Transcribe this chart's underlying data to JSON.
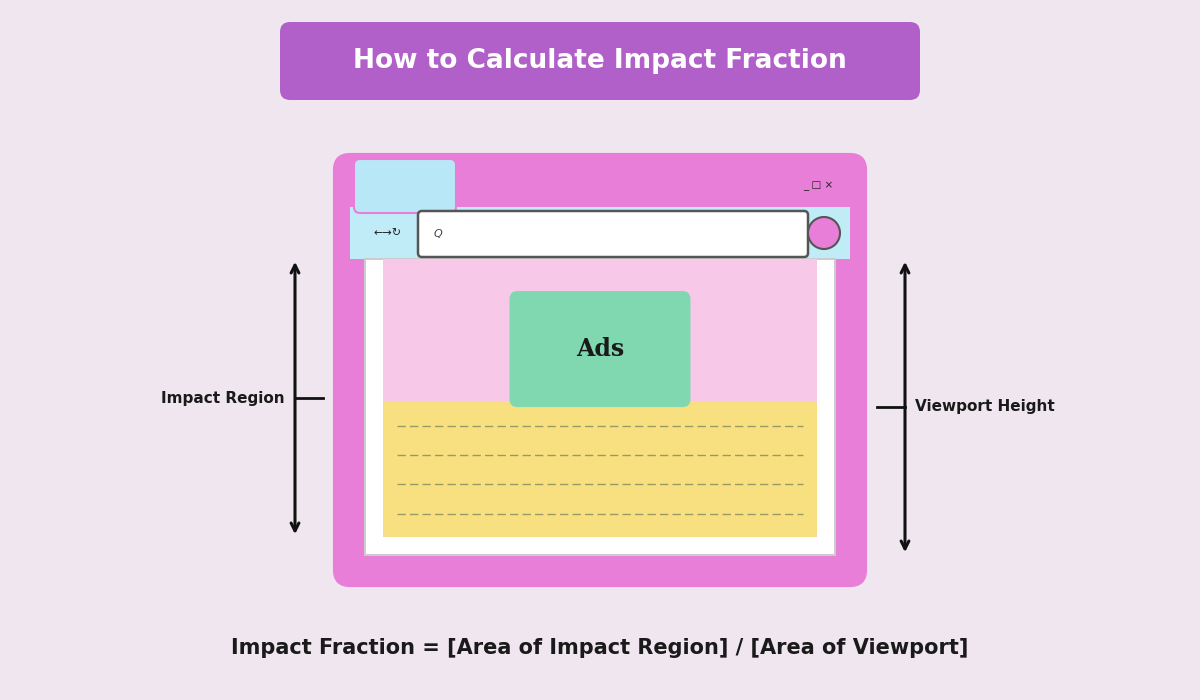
{
  "bg_color": "#f0e6f0",
  "title_text": "How to Calculate Impact Fraction",
  "title_bg": "#b060c8",
  "title_fg": "#ffffff",
  "formula_text": "Impact Fraction = [Area of Impact Region] / [Area of Viewport]",
  "formula_color": "#1a1a1a",
  "browser_outer_color": "#e87ed8",
  "browser_tab_color": "#b8e8f8",
  "browser_toolbar_color": "#c0ecf8",
  "content_pink_bg": "#f8c8e8",
  "ads_box_color": "#80d8b0",
  "ads_text": "Ads",
  "yellow_box_color": "#f8e080",
  "label_impact": "Impact Region",
  "label_viewport": "Viewport Height",
  "arrow_color": "#111111",
  "browser_border_lw": 3.0,
  "bx": 3.5,
  "by": 1.3,
  "bw": 5.0,
  "bh": 4.0
}
